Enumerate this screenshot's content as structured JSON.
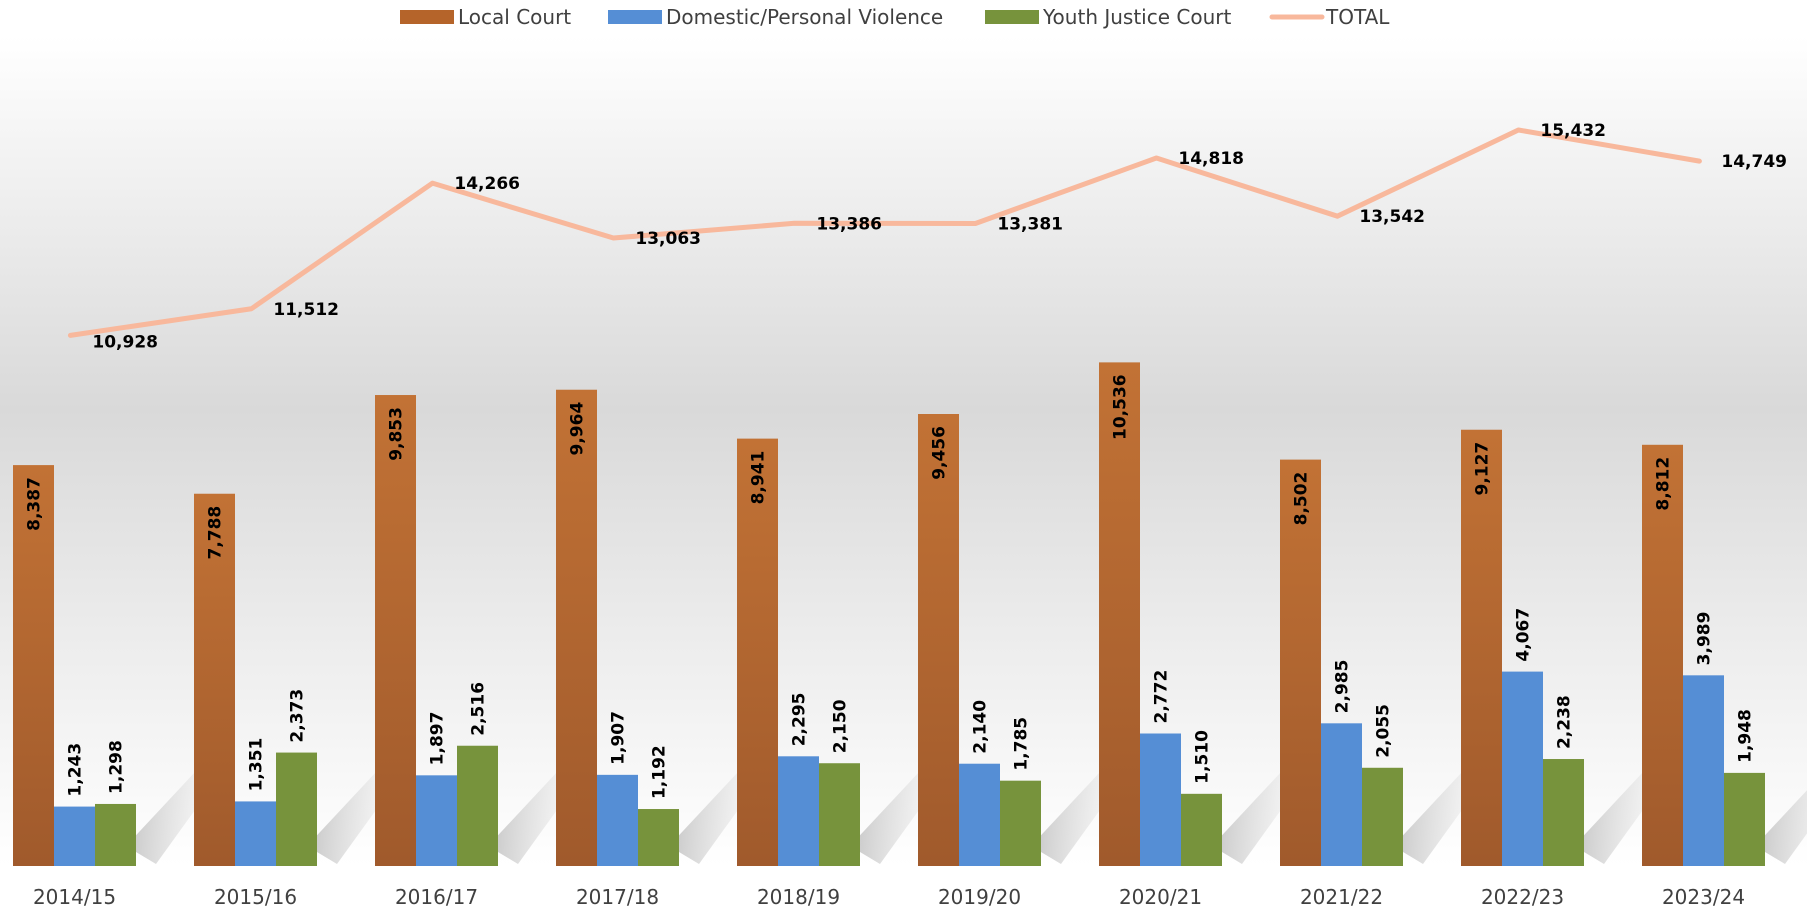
{
  "chart_data": {
    "type": "bar",
    "categories": [
      "2014/15",
      "2015/16",
      "2016/17",
      "2017/18",
      "2018/19",
      "2019/20",
      "2020/21",
      "2021/22",
      "2022/23",
      "2023/24"
    ],
    "series": [
      {
        "name": "Local Court",
        "type": "bar",
        "color": "#B5642A",
        "values": [
          8387,
          7788,
          9853,
          9964,
          8941,
          9456,
          10536,
          8502,
          9127,
          8812
        ]
      },
      {
        "name": "Domestic/Personal Violence",
        "type": "bar",
        "color": "#558ED5",
        "values": [
          1243,
          1351,
          1897,
          1907,
          2295,
          2140,
          2772,
          2985,
          4067,
          3989
        ]
      },
      {
        "name": "Youth Justice Court",
        "type": "bar",
        "color": "#77933C",
        "values": [
          1298,
          2373,
          2516,
          1192,
          2150,
          1785,
          1510,
          2055,
          2238,
          1948
        ]
      },
      {
        "name": "TOTAL",
        "type": "line",
        "color": "#F8B89C",
        "values": [
          10928,
          11512,
          14266,
          13063,
          13386,
          13381,
          14818,
          13542,
          15432,
          14749
        ]
      }
    ],
    "title": "",
    "xlabel": "",
    "ylabel": "",
    "legend": "top",
    "grid": false
  }
}
